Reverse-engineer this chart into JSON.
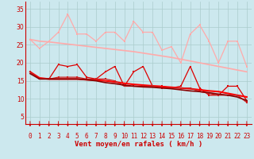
{
  "title": "",
  "xlabel": "Vent moyen/en rafales ( km/h )",
  "ylabel": "",
  "background_color": "#cce8ee",
  "grid_color": "#aacccc",
  "xlim": [
    -0.5,
    23.5
  ],
  "ylim": [
    3,
    37
  ],
  "yticks": [
    5,
    10,
    15,
    20,
    25,
    30,
    35
  ],
  "xticks": [
    0,
    1,
    2,
    3,
    4,
    5,
    6,
    7,
    8,
    9,
    10,
    11,
    12,
    13,
    14,
    15,
    16,
    17,
    18,
    19,
    20,
    21,
    22,
    23
  ],
  "lines": [
    {
      "x": [
        0,
        1,
        2,
        3,
        4,
        5,
        6,
        7,
        8,
        9,
        10,
        11,
        12,
        13,
        14,
        15,
        16,
        17,
        18,
        19,
        20,
        21,
        22,
        23
      ],
      "y": [
        26.5,
        24.0,
        26.0,
        28.5,
        33.5,
        28.0,
        28.0,
        26.0,
        28.5,
        28.5,
        26.0,
        31.5,
        28.5,
        28.5,
        23.5,
        24.5,
        20.0,
        28.0,
        30.5,
        26.0,
        20.0,
        26.0,
        26.0,
        19.0
      ],
      "color": "#ffaaaa",
      "marker": "s",
      "markersize": 2.0,
      "linewidth": 0.9
    },
    {
      "x": [
        0,
        1,
        2,
        3,
        4,
        5,
        6,
        7,
        8,
        9,
        10,
        11,
        12,
        13,
        14,
        15,
        16,
        17,
        18,
        19,
        20,
        21,
        22,
        23
      ],
      "y": [
        26.5,
        26.0,
        25.8,
        25.5,
        25.2,
        24.9,
        24.6,
        24.3,
        24.0,
        23.7,
        23.4,
        23.1,
        22.7,
        22.3,
        21.9,
        21.5,
        21.0,
        20.5,
        20.0,
        19.5,
        19.0,
        18.5,
        18.0,
        17.5
      ],
      "color": "#ffaaaa",
      "marker": null,
      "markersize": 0,
      "linewidth": 1.2
    },
    {
      "x": [
        0,
        1,
        2,
        3,
        4,
        5,
        6,
        7,
        8,
        9,
        10,
        11,
        12,
        13,
        14,
        15,
        16,
        17,
        18,
        19,
        20,
        21,
        22,
        23
      ],
      "y": [
        17.5,
        15.5,
        15.5,
        19.5,
        19.0,
        19.5,
        16.0,
        15.5,
        17.5,
        19.0,
        13.5,
        17.5,
        19.0,
        13.5,
        13.5,
        13.0,
        13.5,
        19.0,
        13.0,
        11.0,
        11.0,
        13.5,
        13.5,
        9.5
      ],
      "color": "#dd0000",
      "marker": "s",
      "markersize": 2.0,
      "linewidth": 0.9
    },
    {
      "x": [
        0,
        1,
        2,
        3,
        4,
        5,
        6,
        7,
        8,
        9,
        10,
        11,
        12,
        13,
        14,
        15,
        16,
        17,
        18,
        19,
        20,
        21,
        22,
        23
      ],
      "y": [
        17.5,
        15.8,
        15.5,
        15.5,
        15.5,
        15.5,
        15.3,
        15.2,
        15.0,
        14.7,
        14.3,
        14.0,
        13.8,
        13.6,
        13.4,
        13.2,
        13.0,
        12.8,
        12.5,
        12.2,
        12.0,
        11.5,
        11.0,
        10.5
      ],
      "color": "#ff0000",
      "marker": null,
      "markersize": 0,
      "linewidth": 1.5
    },
    {
      "x": [
        0,
        1,
        2,
        3,
        4,
        5,
        6,
        7,
        8,
        9,
        10,
        11,
        12,
        13,
        14,
        15,
        16,
        17,
        18,
        19,
        20,
        21,
        22,
        23
      ],
      "y": [
        17.5,
        15.5,
        15.5,
        16.0,
        16.0,
        16.0,
        15.5,
        15.5,
        15.5,
        15.0,
        13.5,
        13.5,
        13.5,
        13.5,
        13.0,
        13.0,
        13.0,
        13.0,
        12.0,
        11.5,
        11.0,
        11.0,
        11.0,
        9.0
      ],
      "color": "#cc2222",
      "marker": "s",
      "markersize": 2.0,
      "linewidth": 0.9
    },
    {
      "x": [
        0,
        1,
        2,
        3,
        4,
        5,
        6,
        7,
        8,
        9,
        10,
        11,
        12,
        13,
        14,
        15,
        16,
        17,
        18,
        19,
        20,
        21,
        22,
        23
      ],
      "y": [
        17.0,
        15.5,
        15.5,
        15.5,
        15.5,
        15.5,
        15.3,
        15.0,
        14.5,
        14.2,
        13.8,
        13.5,
        13.3,
        13.2,
        13.0,
        12.8,
        12.5,
        12.2,
        12.0,
        11.7,
        11.3,
        11.0,
        10.5,
        9.5
      ],
      "color": "#880000",
      "marker": null,
      "markersize": 0,
      "linewidth": 1.2
    }
  ],
  "arrow_color": "#cc0000",
  "xlabel_color": "#cc0000",
  "tick_color": "#cc0000",
  "axis_label_fontsize": 6.5,
  "tick_fontsize": 5.5
}
